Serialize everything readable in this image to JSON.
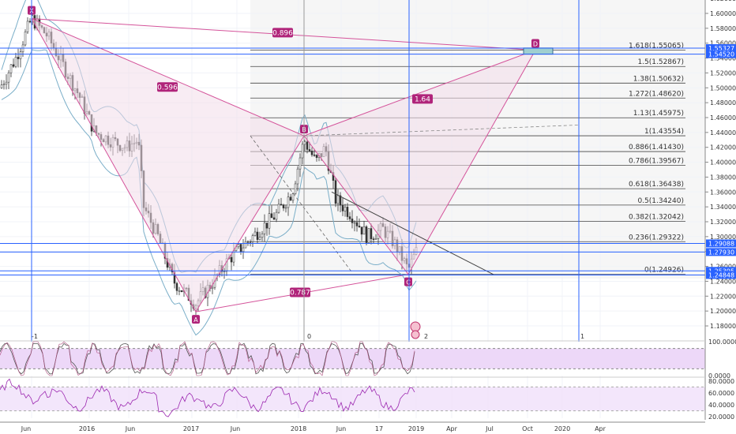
{
  "chart_data": {
    "type": "line",
    "subtype": "candlestick-with-harmonic-pattern",
    "colors": {
      "pattern_stroke": "#d4539a",
      "pattern_fill": "#f3dcea",
      "point_label_bg": "#b0247a",
      "blue_line": "#2962ff",
      "bollinger": "#7aaec8",
      "candle_up": "#ffffff",
      "candle_down": "#333333",
      "stoch_band": "#e6c8f5",
      "rsi_band": "#f0e0fa",
      "rsi_line": "#9c27b0",
      "fib_line": "#888888",
      "fib_zone": "#eeeeee",
      "price_tag": "#2962ff"
    },
    "x_axis_labels": [
      "Jun",
      "2016",
      "Jun",
      "2017",
      "Jun",
      "2018",
      "Jun",
      "17",
      "2019",
      "Apr",
      "Jul",
      "Oct",
      "2020",
      "Apr"
    ],
    "y_axis": {
      "ylim": [
        1.162,
        1.618
      ],
      "ticks": [
        "1.62000",
        "1.60000",
        "1.58000",
        "1.56000",
        "1.54000",
        "1.52000",
        "1.50000",
        "1.48000",
        "1.46000",
        "1.44000",
        "1.42000",
        "1.40000",
        "1.38000",
        "1.36000",
        "1.34000",
        "1.32000",
        "1.30000",
        "1.28000",
        "1.26000",
        "1.24000",
        "1.22000",
        "1.20000",
        "1.18000"
      ],
      "tick_values": [
        1.62,
        1.6,
        1.58,
        1.56,
        1.54,
        1.52,
        1.5,
        1.48,
        1.46,
        1.44,
        1.42,
        1.4,
        1.38,
        1.36,
        1.34,
        1.32,
        1.3,
        1.28,
        1.26,
        1.24,
        1.22,
        1.2,
        1.18
      ]
    },
    "price_tags": [
      {
        "label": "1.55327",
        "value": 1.55327
      },
      {
        "label": "1.54520",
        "value": 1.5452
      },
      {
        "label": "1.29088",
        "value": 1.29088
      },
      {
        "label": "1.27930",
        "value": 1.2793
      },
      {
        "label": "1.25395",
        "value": 1.25395
      },
      {
        "label": "1.24848",
        "value": 1.24848
      }
    ],
    "harmonic_points": [
      {
        "label": "X",
        "date": "2015-06",
        "value": 1.593
      },
      {
        "label": "A",
        "date": "2016-10",
        "value": 1.199
      },
      {
        "label": "B",
        "date": "2018-01",
        "value": 1.4355
      },
      {
        "label": "C",
        "date": "2018-12",
        "value": 1.2493
      },
      {
        "label": "D",
        "date": "2019-10",
        "value": 1.5507
      }
    ],
    "ratios": [
      {
        "label": "0.896",
        "between": "X-D"
      },
      {
        "label": "0.596",
        "between": "X-B"
      },
      {
        "label": "1.64",
        "between": "B-D"
      },
      {
        "label": "0.787",
        "between": "A-C"
      }
    ],
    "fib_levels": [
      {
        "label": "1.618(1.55065)",
        "value": 1.55065
      },
      {
        "label": "1.5(1.52867)",
        "value": 1.52867
      },
      {
        "label": "1.38(1.50632)",
        "value": 1.50632
      },
      {
        "label": "1.272(1.48620)",
        "value": 1.4862
      },
      {
        "label": "1.13(1.45975)",
        "value": 1.45975
      },
      {
        "label": "1(1.43554)",
        "value": 1.43554
      },
      {
        "label": "0.886(1.41430)",
        "value": 1.4143
      },
      {
        "label": "0.786(1.39567)",
        "value": 1.39567
      },
      {
        "label": "0.618(1.36438)",
        "value": 1.36438
      },
      {
        "label": "0.5(1.34240)",
        "value": 1.3424
      },
      {
        "label": "0.382(1.32042)",
        "value": 1.32042
      },
      {
        "label": "0.236(1.29322)",
        "value": 1.29322
      },
      {
        "label": "0(1.24926)",
        "value": 1.24926
      }
    ],
    "vertical_markers": [
      "-1",
      "0",
      "2",
      "1"
    ],
    "stochastic": {
      "ylim": [
        0,
        100
      ],
      "ticks": [
        "100.0000",
        "0.0000"
      ],
      "tick_values": [
        100,
        0
      ]
    },
    "rsi": {
      "ylim": [
        15,
        85
      ],
      "ticks": [
        "80.0000",
        "60.0000",
        "40.0000",
        "20.0000"
      ],
      "tick_values": [
        80,
        60,
        40,
        20
      ]
    }
  }
}
